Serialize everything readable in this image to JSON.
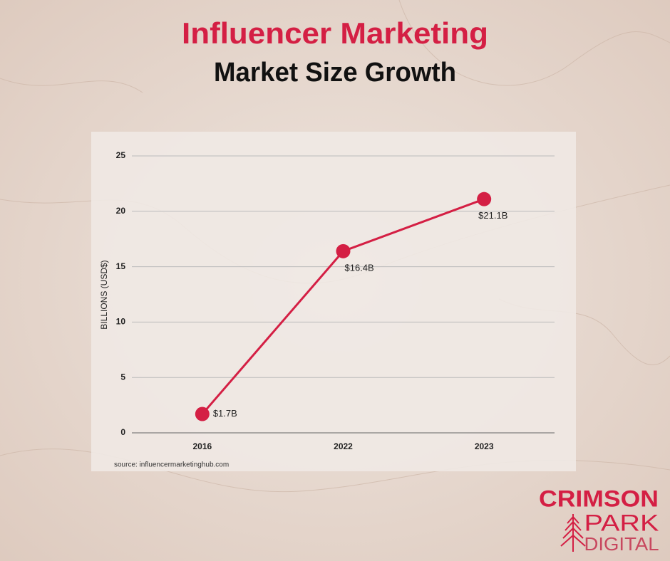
{
  "chart_data": {
    "type": "line",
    "title": "Influencer Marketing",
    "subtitle": "Market Size Growth",
    "y_label": "BILLIONS (USD$)",
    "categories": [
      "2016",
      "2022",
      "2023"
    ],
    "series": [
      {
        "name": "Market Size",
        "color": "#d41f44",
        "values": [
          1.7,
          16.4,
          21.1
        ],
        "value_labels": [
          "$1.7B",
          "$16.4B",
          "$21.1B"
        ]
      }
    ],
    "ylim": [
      0,
      25
    ],
    "yticks": [
      0,
      5,
      10,
      15,
      20,
      25
    ],
    "grid": true,
    "source": "source: influencermarketinghub.com"
  },
  "logo": {
    "line1": "CRIMSON",
    "line2": "PARK",
    "line3": "DIGITAL"
  }
}
